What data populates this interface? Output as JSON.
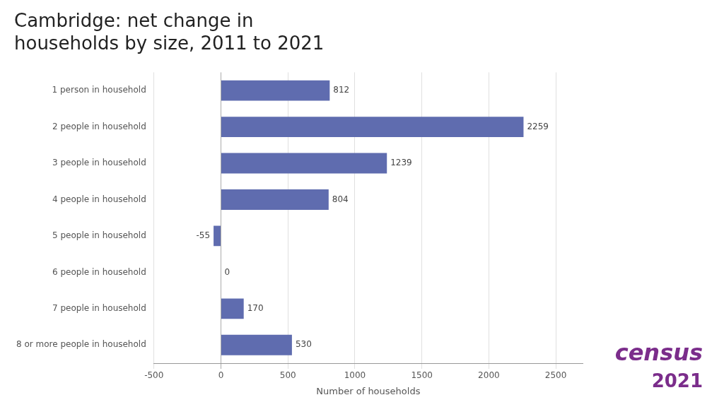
{
  "chart_data": {
    "type": "bar",
    "orientation": "horizontal",
    "title": "Cambridge: net change in\nhouseholds by size, 2011 to 2021",
    "categories": [
      "8 or more people in household",
      "7 people in household",
      "6 people in household",
      "5 people in household",
      "4 people in household",
      "3 people in household",
      "2 people in household",
      "1 person in household"
    ],
    "values": [
      530,
      170,
      0,
      -55,
      804,
      1239,
      2259,
      812
    ],
    "color": "#5f6caf",
    "x_label": "Number of households",
    "xlim": [
      -500,
      2700
    ],
    "xticks": [
      -500,
      0,
      500,
      1000,
      1500,
      2000,
      2500
    ],
    "grid": true,
    "data_labels": true,
    "annotations": [
      {
        "text": "census",
        "color": "#7b2d8b"
      },
      {
        "text": "2021",
        "color": "#7b2d8b"
      }
    ]
  }
}
